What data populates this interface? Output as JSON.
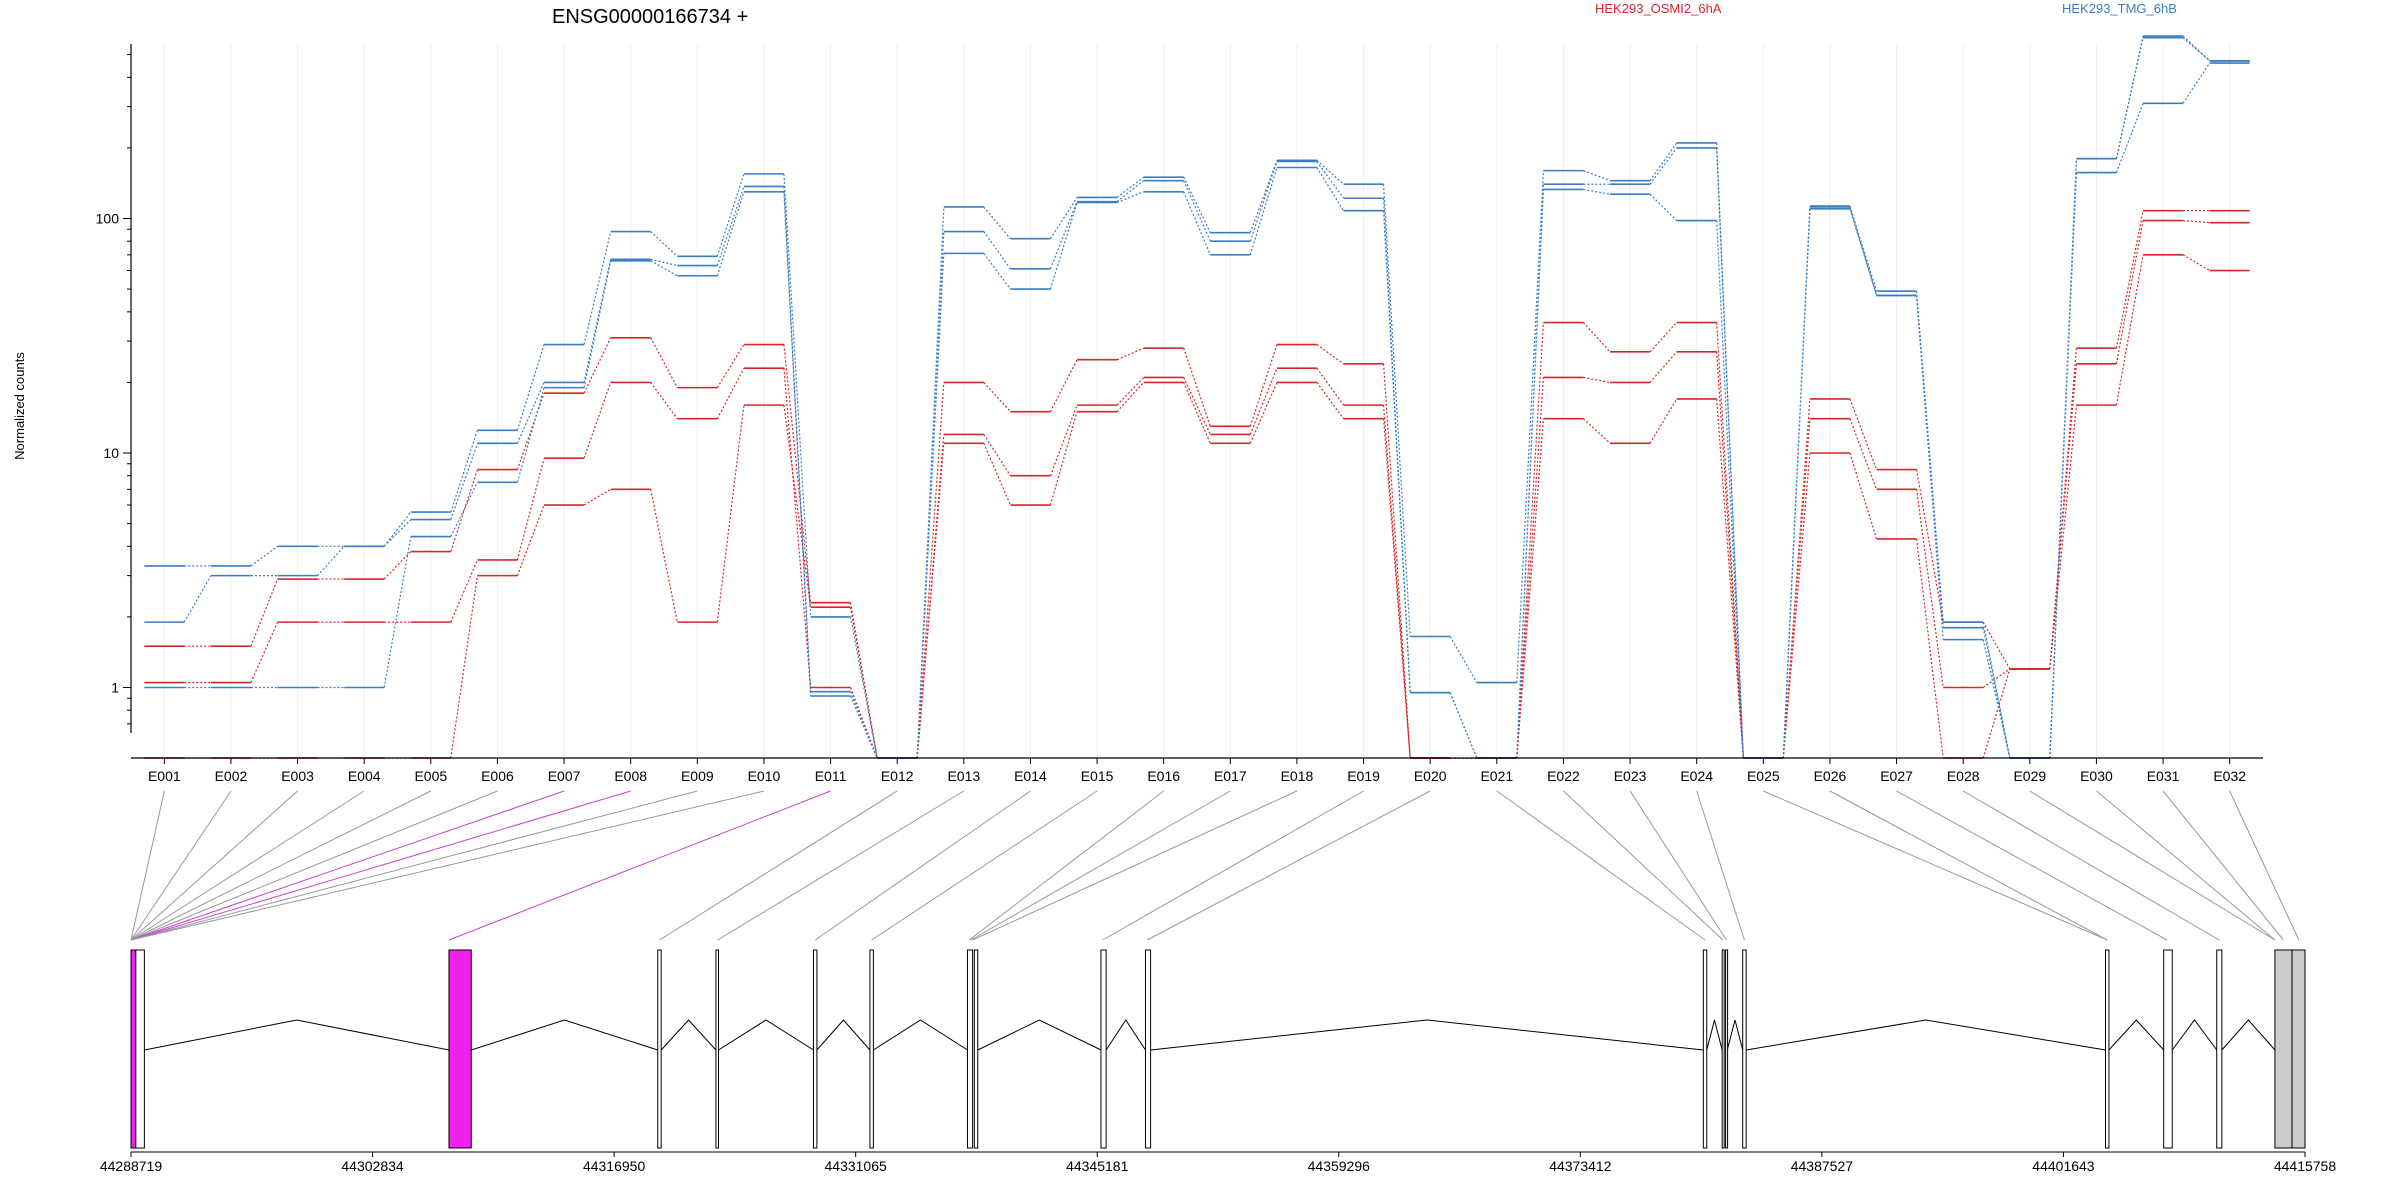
{
  "chart_data": {
    "type": "line",
    "title": "ENSG00000166734 +",
    "ylabel": "Normalized counts",
    "xlabel": "",
    "yscale": "log",
    "yticks": [
      "1",
      "10",
      "100"
    ],
    "legend": [
      {
        "name": "HEK293_OSMI2_6hA",
        "color": "#d62728"
      },
      {
        "name": "HEK293_TMG_6hB",
        "color": "#3a7dc1"
      }
    ],
    "categories": [
      "E001",
      "E002",
      "E003",
      "E004",
      "E005",
      "E006",
      "E007",
      "E008",
      "E009",
      "E010",
      "E011",
      "E012",
      "E013",
      "E014",
      "E015",
      "E016",
      "E017",
      "E018",
      "E019",
      "E020",
      "E021",
      "E022",
      "E023",
      "E024",
      "E025",
      "E026",
      "E027",
      "E028",
      "E029",
      "E030",
      "E031",
      "E032"
    ],
    "series": [
      {
        "group": "HEK293_OSMI2_6hA",
        "color": "#d62728",
        "values": [
          0.5,
          0.5,
          0.5,
          0.5,
          0.5,
          3.0,
          6.0,
          7.0,
          1.9,
          16,
          2.2,
          0.5,
          11,
          6.0,
          15,
          20,
          11,
          20,
          14,
          0.5,
          0.5,
          14,
          11,
          17,
          0.5,
          10,
          4.3,
          0.5,
          1.2,
          16,
          70,
          60
        ]
      },
      {
        "group": "HEK293_OSMI2_6hA",
        "color": "#d62728",
        "values": [
          1.05,
          1.05,
          1.9,
          1.9,
          1.9,
          3.5,
          9.5,
          20,
          14,
          23,
          1.0,
          0.5,
          12,
          8.0,
          16,
          21,
          12,
          23,
          16,
          0.5,
          0.5,
          21,
          20,
          27,
          0.5,
          14,
          7.0,
          1.0,
          1.2,
          24,
          98,
          96
        ]
      },
      {
        "group": "HEK293_OSMI2_6hA",
        "color": "#d62728",
        "values": [
          1.5,
          1.5,
          2.9,
          2.9,
          3.8,
          8.5,
          18,
          31,
          19,
          29,
          2.3,
          0.5,
          20,
          15,
          25,
          28,
          13,
          29,
          24,
          0.5,
          0.5,
          36,
          27,
          36,
          0.5,
          17,
          8.5,
          1.9,
          1.2,
          28,
          108,
          108
        ]
      },
      {
        "group": "HEK293_TMG_6hB",
        "color": "#3a7dc1",
        "values": [
          1.0,
          1.0,
          1.0,
          1.0,
          4.4,
          7.5,
          19,
          66,
          57,
          130,
          0.92,
          0.5,
          71,
          50,
          117,
          130,
          70,
          165,
          108,
          0.95,
          0.5,
          133,
          127,
          98,
          0.5,
          110,
          47,
          1.6,
          0.5,
          157,
          310,
          460
        ]
      },
      {
        "group": "HEK293_TMG_6hB",
        "color": "#3a7dc1",
        "values": [
          1.9,
          3.0,
          3.0,
          4.0,
          5.2,
          11,
          20,
          67,
          63,
          137,
          0.96,
          0.5,
          88,
          61,
          118,
          145,
          80,
          175,
          122,
          0.95,
          0.5,
          140,
          140,
          200,
          0.5,
          112,
          47,
          1.8,
          0.5,
          180,
          590,
          470
        ]
      },
      {
        "group": "HEK293_TMG_6hB",
        "color": "#3a7dc1",
        "values": [
          3.3,
          3.3,
          4.0,
          4.0,
          5.6,
          12.5,
          29,
          88,
          69,
          155,
          2.0,
          0.5,
          112,
          82,
          123,
          150,
          87,
          177,
          140,
          1.65,
          1.05,
          160,
          145,
          210,
          0.5,
          113,
          49,
          1.9,
          0.5,
          180,
          600,
          470
        ]
      }
    ],
    "gene_model": {
      "coordinates": [
        "44288719",
        "44302834",
        "44316950",
        "44331065",
        "44345181",
        "44359296",
        "44373412",
        "44387527",
        "44401643",
        "44415758"
      ],
      "start": 44288719,
      "end": 44415758,
      "exons": [
        {
          "start": 44288719,
          "end": 44289000,
          "fill": "magenta"
        },
        {
          "start": 44289000,
          "end": 44289500,
          "fill": "white"
        },
        {
          "start": 44307300,
          "end": 44308600,
          "fill": "magenta"
        },
        {
          "start": 44319500,
          "end": 44319700,
          "fill": "white"
        },
        {
          "start": 44322900,
          "end": 44323050,
          "fill": "white"
        },
        {
          "start": 44328600,
          "end": 44328800,
          "fill": "white"
        },
        {
          "start": 44331900,
          "end": 44332100,
          "fill": "white"
        },
        {
          "start": 44337600,
          "end": 44337900,
          "fill": "white"
        },
        {
          "start": 44338000,
          "end": 44338200,
          "fill": "white"
        },
        {
          "start": 44345400,
          "end": 44345700,
          "fill": "white"
        },
        {
          "start": 44348000,
          "end": 44348300,
          "fill": "white"
        },
        {
          "start": 44380600,
          "end": 44380800,
          "fill": "white"
        },
        {
          "start": 44381700,
          "end": 44381800,
          "fill": "white"
        },
        {
          "start": 44381900,
          "end": 44382000,
          "fill": "white"
        },
        {
          "start": 44382900,
          "end": 44383100,
          "fill": "white"
        },
        {
          "start": 44404100,
          "end": 44404300,
          "fill": "white"
        },
        {
          "start": 44407500,
          "end": 44408000,
          "fill": "white"
        },
        {
          "start": 44410600,
          "end": 44410900,
          "fill": "white"
        },
        {
          "start": 44414000,
          "end": 44415000,
          "fill": "gray"
        },
        {
          "start": 44415000,
          "end": 44415758,
          "fill": "gray"
        }
      ],
      "connector_targets": [
        44288719,
        44288719,
        44288719,
        44288719,
        44288719,
        44288719,
        44288719,
        44288719,
        44288719,
        44288719,
        44307300,
        44319600,
        44323000,
        44328700,
        44332000,
        44337700,
        44337800,
        44337900,
        44345500,
        44348100,
        44380700,
        44381750,
        44381950,
        44383000,
        44404200,
        44404200,
        44407700,
        44410750,
        44414000,
        44414000,
        44414500,
        44415400
      ],
      "highlighted_connectors": [
        6,
        7,
        10
      ]
    }
  }
}
